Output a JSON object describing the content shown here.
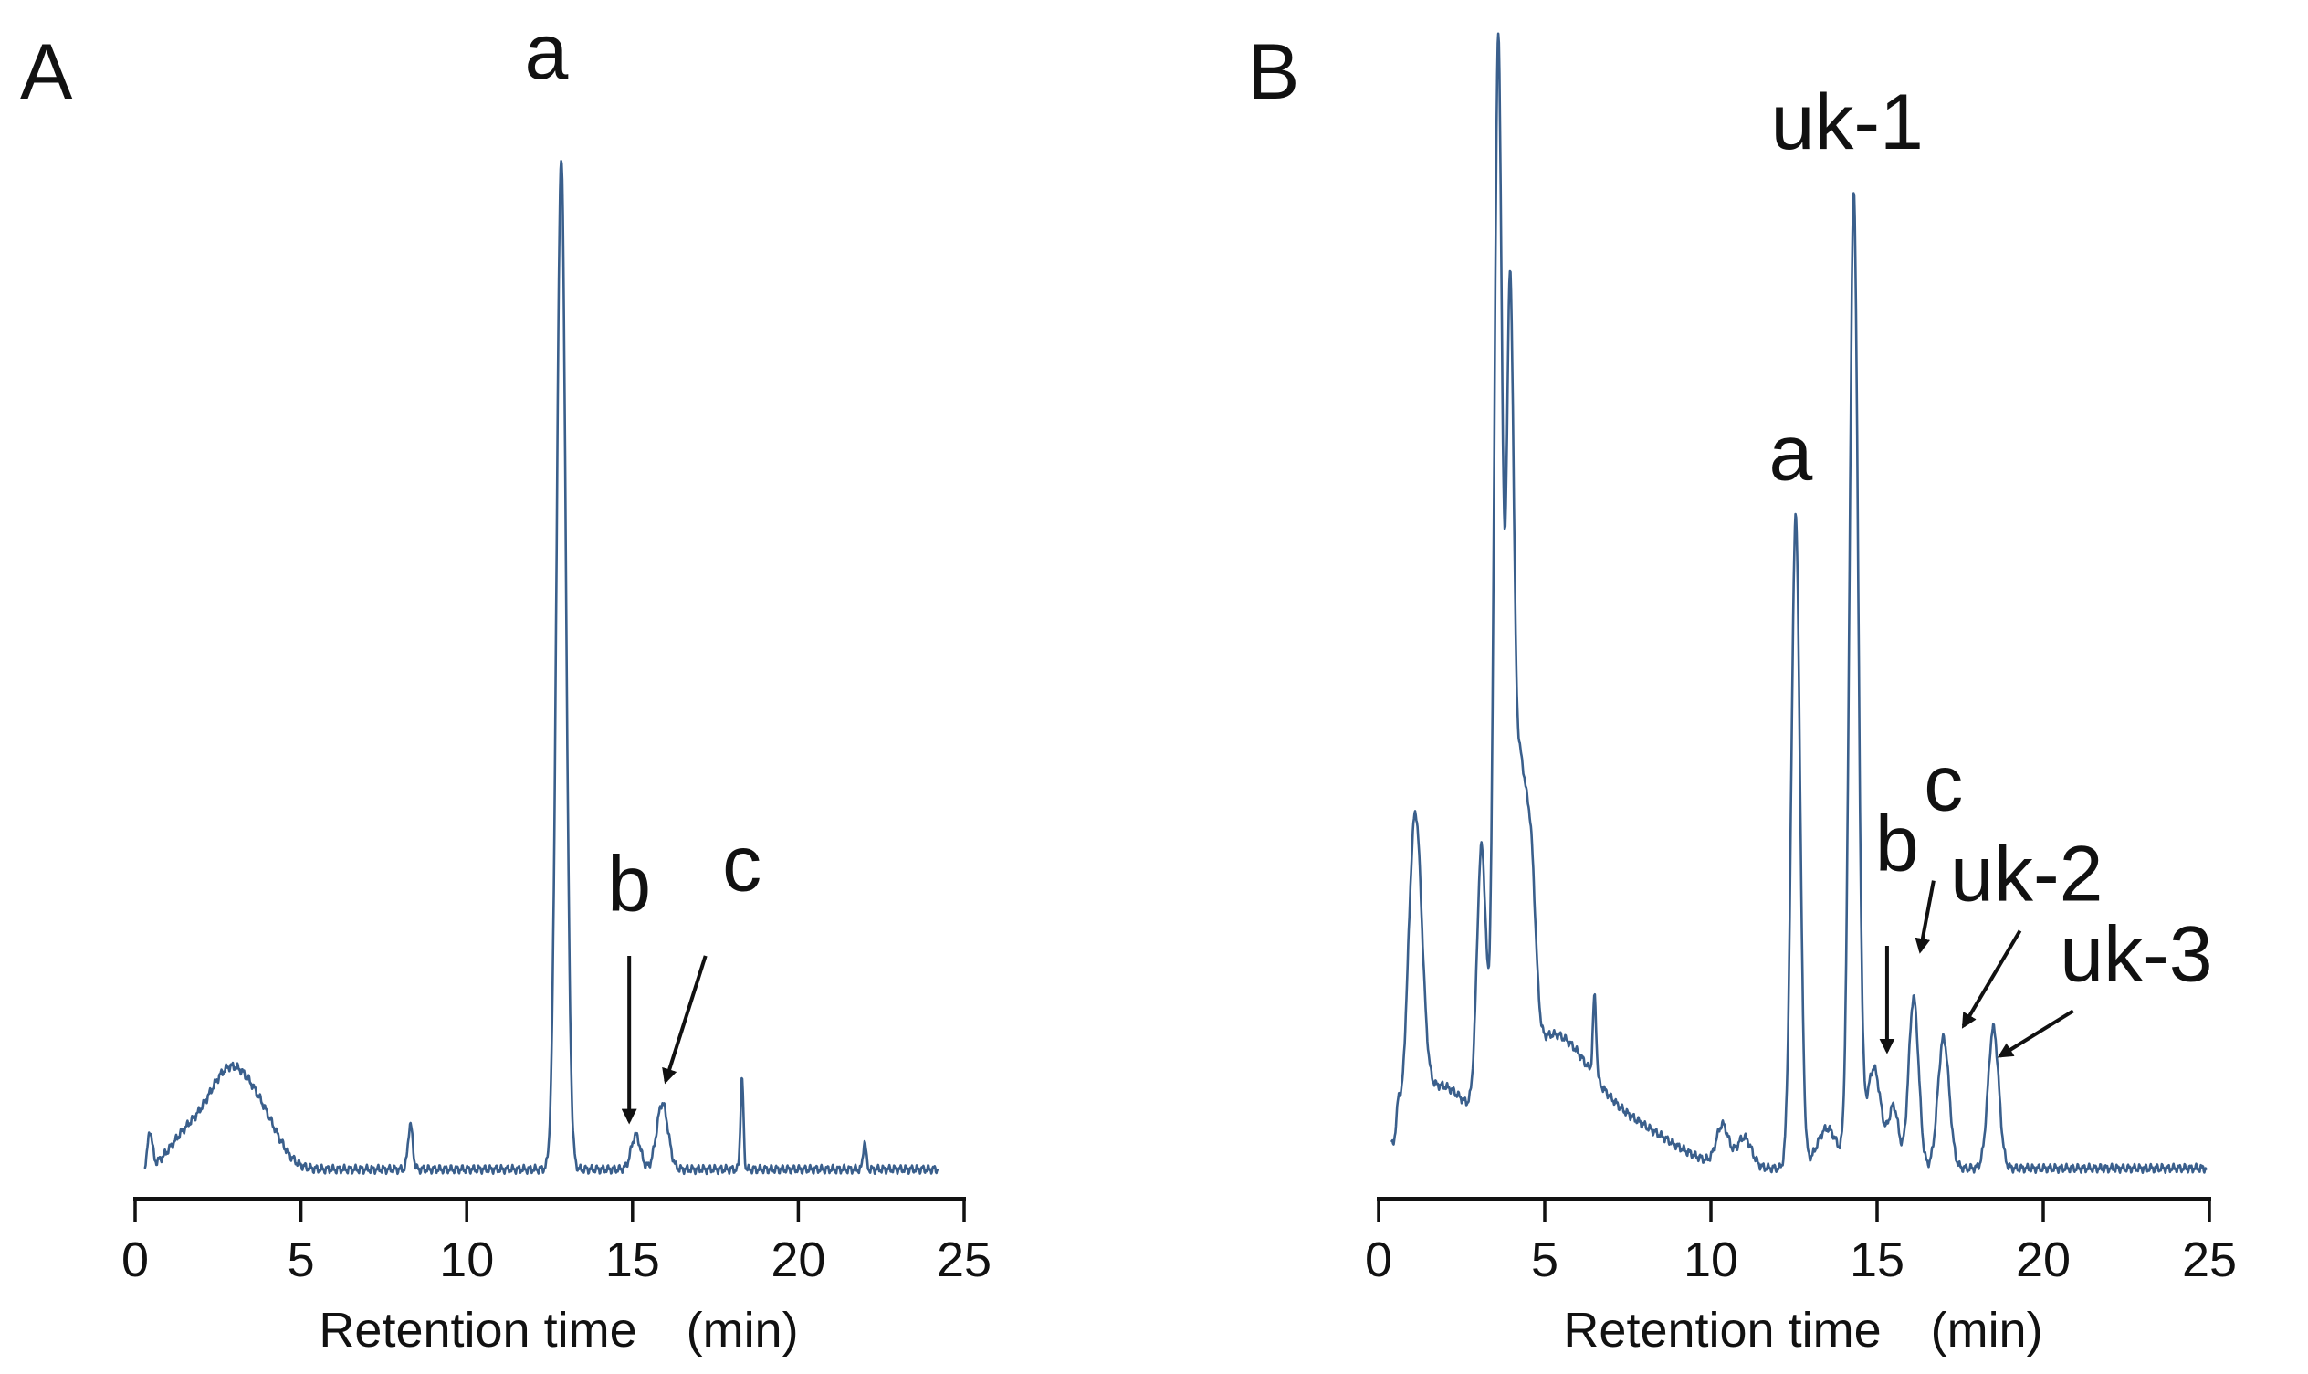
{
  "colors": {
    "trace": "#3a5f8c",
    "axis": "#111111",
    "background": "#ffffff"
  },
  "chart_data": [
    {
      "type": "line",
      "panel_label": "A",
      "xlabel": "Retention time　(min)",
      "ylabel": "",
      "xlim": [
        0,
        25
      ],
      "x_ticks": [
        0,
        5,
        10,
        15,
        20,
        25
      ],
      "x_tick_labels": [
        "0",
        "5",
        "10",
        "15",
        "20",
        "25"
      ],
      "ylim": [
        0,
        100
      ],
      "y_axis_visible": false,
      "x_range": [
        0.3,
        24.2
      ],
      "baseline": 1.2,
      "grid": false,
      "legend": "none",
      "peaks": [
        {
          "x": 0.45,
          "y": 3.5,
          "w": 0.07
        },
        {
          "x": 1.5,
          "y": 3.0,
          "w": 0.5
        },
        {
          "x": 2.5,
          "y": 5.2,
          "w": 0.55
        },
        {
          "x": 3.2,
          "y": 6.8,
          "w": 0.6
        },
        {
          "x": 4.0,
          "y": 2.6,
          "w": 0.5
        },
        {
          "x": 8.3,
          "y": 4.5,
          "w": 0.07
        },
        {
          "x": 12.85,
          "y": 101.0,
          "w": 0.14
        },
        {
          "x": 15.1,
          "y": 3.4,
          "w": 0.14
        },
        {
          "x": 15.9,
          "y": 6.6,
          "w": 0.17
        },
        {
          "x": 18.3,
          "y": 9.0,
          "w": 0.045
        },
        {
          "x": 22.0,
          "y": 2.8,
          "w": 0.045
        }
      ],
      "annotations": [
        {
          "text": "a",
          "x": 12.4,
          "y": 110
        },
        {
          "text": "b",
          "x": 14.9,
          "y": 27
        },
        {
          "text": "c",
          "x": 18.3,
          "y": 29
        }
      ],
      "arrows": [
        {
          "from": [
            14.9,
            22.5
          ],
          "to": [
            14.9,
            6.0
          ]
        },
        {
          "from": [
            17.2,
            22.5
          ],
          "to": [
            16.0,
            10.0
          ]
        }
      ]
    },
    {
      "type": "line",
      "panel_label": "B",
      "xlabel": "Retention time　(min)",
      "ylabel": "",
      "xlim": [
        0,
        25
      ],
      "x_ticks": [
        0,
        5,
        10,
        15,
        20,
        25
      ],
      "x_tick_labels": [
        "0",
        "5",
        "10",
        "15",
        "20",
        "25"
      ],
      "ylim": [
        0,
        100
      ],
      "y_axis_visible": false,
      "x_range": [
        0.4,
        24.9
      ],
      "baseline": 1.3,
      "grid": false,
      "legend": "none",
      "peaks": [
        {
          "x": 0.6,
          "y": 2.8,
          "w": 0.05
        },
        {
          "x": 1.1,
          "y": 29.5,
          "w": 0.2
        },
        {
          "x": 1.8,
          "y": 8.0,
          "w": 0.9
        },
        {
          "x": 3.1,
          "y": 26.5,
          "w": 0.14
        },
        {
          "x": 3.6,
          "y": 106.0,
          "w": 0.12
        },
        {
          "x": 3.95,
          "y": 70.0,
          "w": 0.11
        },
        {
          "x": 4.25,
          "y": 30.0,
          "w": 0.2
        },
        {
          "x": 4.6,
          "y": 15.0,
          "w": 0.14
        },
        {
          "x": 5.2,
          "y": 13.0,
          "w": 1.2
        },
        {
          "x": 6.5,
          "y": 8.0,
          "w": 0.05
        },
        {
          "x": 7.8,
          "y": 3.5,
          "w": 1.2
        },
        {
          "x": 10.35,
          "y": 4.0,
          "w": 0.18
        },
        {
          "x": 11.0,
          "y": 3.0,
          "w": 0.22
        },
        {
          "x": 12.55,
          "y": 65.0,
          "w": 0.13
        },
        {
          "x": 13.5,
          "y": 4.0,
          "w": 0.3
        },
        {
          "x": 14.3,
          "y": 97.0,
          "w": 0.13
        },
        {
          "x": 14.9,
          "y": 10.0,
          "w": 0.22
        },
        {
          "x": 15.5,
          "y": 6.0,
          "w": 0.15
        },
        {
          "x": 16.1,
          "y": 17.0,
          "w": 0.15
        },
        {
          "x": 17.0,
          "y": 13.0,
          "w": 0.17
        },
        {
          "x": 18.5,
          "y": 14.0,
          "w": 0.16
        }
      ],
      "annotations": [
        {
          "text": "uk-1",
          "x": 14.1,
          "y": 103
        },
        {
          "text": "a",
          "x": 12.4,
          "y": 70
        },
        {
          "text": "b",
          "x": 15.6,
          "y": 31
        },
        {
          "text": "c",
          "x": 17.0,
          "y": 37
        },
        {
          "text": "uk-2",
          "x": 19.5,
          "y": 28
        },
        {
          "text": "uk-3",
          "x": 22.8,
          "y": 20
        }
      ],
      "arrows": [
        {
          "from": [
            15.3,
            23.5
          ],
          "to": [
            15.3,
            13.0
          ]
        },
        {
          "from": [
            16.7,
            30.0
          ],
          "to": [
            16.3,
            23.0
          ]
        },
        {
          "from": [
            19.3,
            25.0
          ],
          "to": [
            17.6,
            15.5
          ]
        },
        {
          "from": [
            20.9,
            17.0
          ],
          "to": [
            18.7,
            12.5
          ]
        }
      ]
    }
  ]
}
